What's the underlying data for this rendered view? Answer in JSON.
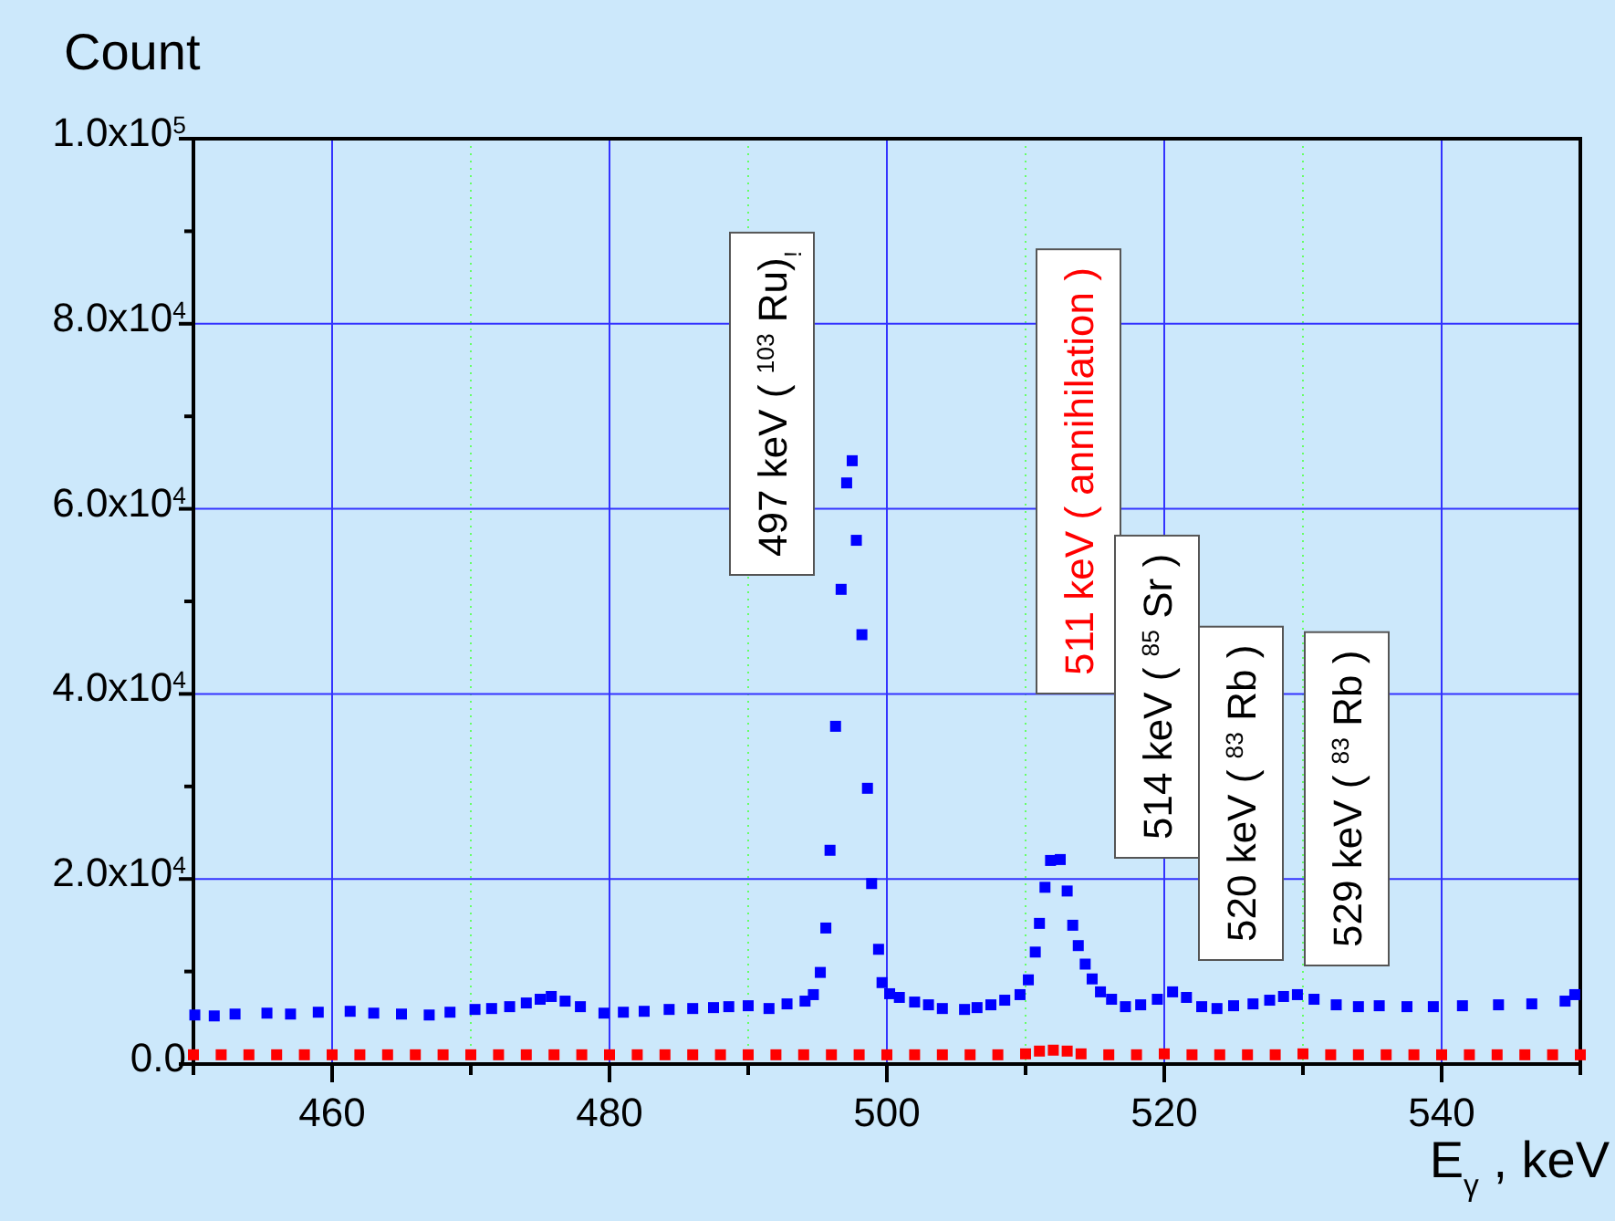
{
  "chart_data": {
    "type": "scatter",
    "xlabel": "E$_{γ}$, keV",
    "ylabel": "Count",
    "xlim": [
      450,
      550
    ],
    "ylim": [
      0,
      100000
    ],
    "xticks": [
      {
        "value": 450,
        "label": null
      },
      460,
      {
        "value": 470,
        "label": null
      },
      480,
      {
        "value": 490,
        "label": null
      },
      500,
      {
        "value": 510,
        "label": null
      },
      520,
      {
        "value": 530,
        "label": null
      },
      540,
      {
        "value": 550,
        "label": null
      }
    ],
    "yticks": [
      {
        "value": 0,
        "label": "0.0"
      },
      {
        "value": 10000,
        "label": null
      },
      {
        "value": 20000,
        "label": "2.0x10$^{4}$"
      },
      {
        "value": 30000,
        "label": null
      },
      {
        "value": 40000,
        "label": "4.0x10$^{4}$"
      },
      {
        "value": 50000,
        "label": null
      },
      {
        "value": 60000,
        "label": "6.0x10$^{4}$"
      },
      {
        "value": 70000,
        "label": null
      },
      {
        "value": 80000,
        "label": "8.0x10$^{4}$"
      },
      {
        "value": 90000,
        "label": null
      },
      {
        "value": 100000,
        "label": "1.0x10$^{5}$"
      }
    ],
    "grid": true,
    "marker": "square",
    "series": [
      {
        "color": "#0000ff",
        "x": [
          450.1,
          451.5,
          453,
          455.3,
          457,
          459,
          461.3,
          463,
          465,
          467,
          468.5,
          470.3,
          471.5,
          472.8,
          474,
          475,
          475.8,
          476.8,
          477.9,
          479.6,
          481,
          482.5,
          484.3,
          486,
          487.5,
          488.6,
          490,
          491.5,
          492.8,
          494.1,
          494.7,
          495.2,
          495.6,
          495.9,
          496.3,
          496.7,
          497.1,
          497.5,
          497.8,
          498.2,
          498.6,
          498.9,
          499.4,
          499.65,
          500.2,
          500.9,
          502,
          503,
          504,
          505.6,
          506.5,
          507.5,
          508.5,
          509.6,
          510.2,
          510.7,
          511,
          511.4,
          511.8,
          512.5,
          513,
          513.4,
          513.8,
          514.3,
          514.8,
          515.4,
          516.2,
          517.2,
          518.3,
          519.5,
          520.6,
          521.6,
          522.7,
          523.8,
          525,
          526.4,
          527.6,
          528.6,
          529.6,
          530.8,
          532.4,
          534,
          535.5,
          537.5,
          539.4,
          541.5,
          544.1,
          546.5,
          548.9,
          549.6
        ],
        "values": [
          5300,
          5200,
          5400,
          5500,
          5400,
          5600,
          5700,
          5500,
          5400,
          5300,
          5600,
          5900,
          6000,
          6200,
          6600,
          7000,
          7300,
          6800,
          6200,
          5500,
          5600,
          5700,
          5900,
          6000,
          6100,
          6200,
          6300,
          6000,
          6500,
          6800,
          7500,
          9900,
          14700,
          23100,
          36500,
          51300,
          62800,
          65200,
          56600,
          46400,
          29800,
          19500,
          12400,
          8800,
          7600,
          7200,
          6700,
          6400,
          6000,
          5900,
          6100,
          6400,
          6900,
          7500,
          9100,
          12100,
          15200,
          19100,
          22000,
          22100,
          18700,
          15000,
          12800,
          10800,
          9200,
          7800,
          7000,
          6200,
          6400,
          7000,
          7800,
          7200,
          6200,
          6000,
          6300,
          6500,
          6900,
          7300,
          7500,
          7000,
          6400,
          6200,
          6300,
          6200,
          6200,
          6300,
          6400,
          6500,
          6800,
          7500
        ]
      },
      {
        "color": "#ff0000",
        "x": [
          450,
          452,
          454,
          456,
          458,
          460,
          462,
          464,
          466,
          468,
          470,
          472,
          474,
          476,
          478,
          480,
          482,
          484,
          486,
          488,
          490,
          492,
          494,
          496,
          498,
          500,
          502,
          504,
          506,
          508,
          510,
          511,
          512,
          513,
          514,
          516,
          518,
          520,
          522,
          524,
          526,
          528,
          530,
          532,
          534,
          536,
          538,
          540,
          542,
          544,
          546,
          548,
          550
        ],
        "values": [
          1000,
          1000,
          1000,
          1000,
          1000,
          1000,
          1000,
          1000,
          1000,
          1000,
          1000,
          1000,
          1000,
          1000,
          1000,
          1000,
          1000,
          1000,
          1000,
          1000,
          1000,
          1000,
          1000,
          1000,
          1000,
          1000,
          1000,
          1000,
          1000,
          1000,
          1100,
          1400,
          1500,
          1400,
          1100,
          1000,
          1000,
          1100,
          1000,
          1000,
          1000,
          1000,
          1100,
          1000,
          1000,
          1000,
          1000,
          1000,
          1000,
          1000,
          1000,
          1000,
          1000
        ]
      }
    ],
    "annotations": [
      "497 keV ( $^{103}$ Ru)$_{!}$",
      "511 keV ( annihilation )",
      "514 keV ( $^{85}$Sr )",
      "520 keV ( $^{83}$Rb )",
      "529 keV ( $^{83}$Rb )"
    ]
  }
}
